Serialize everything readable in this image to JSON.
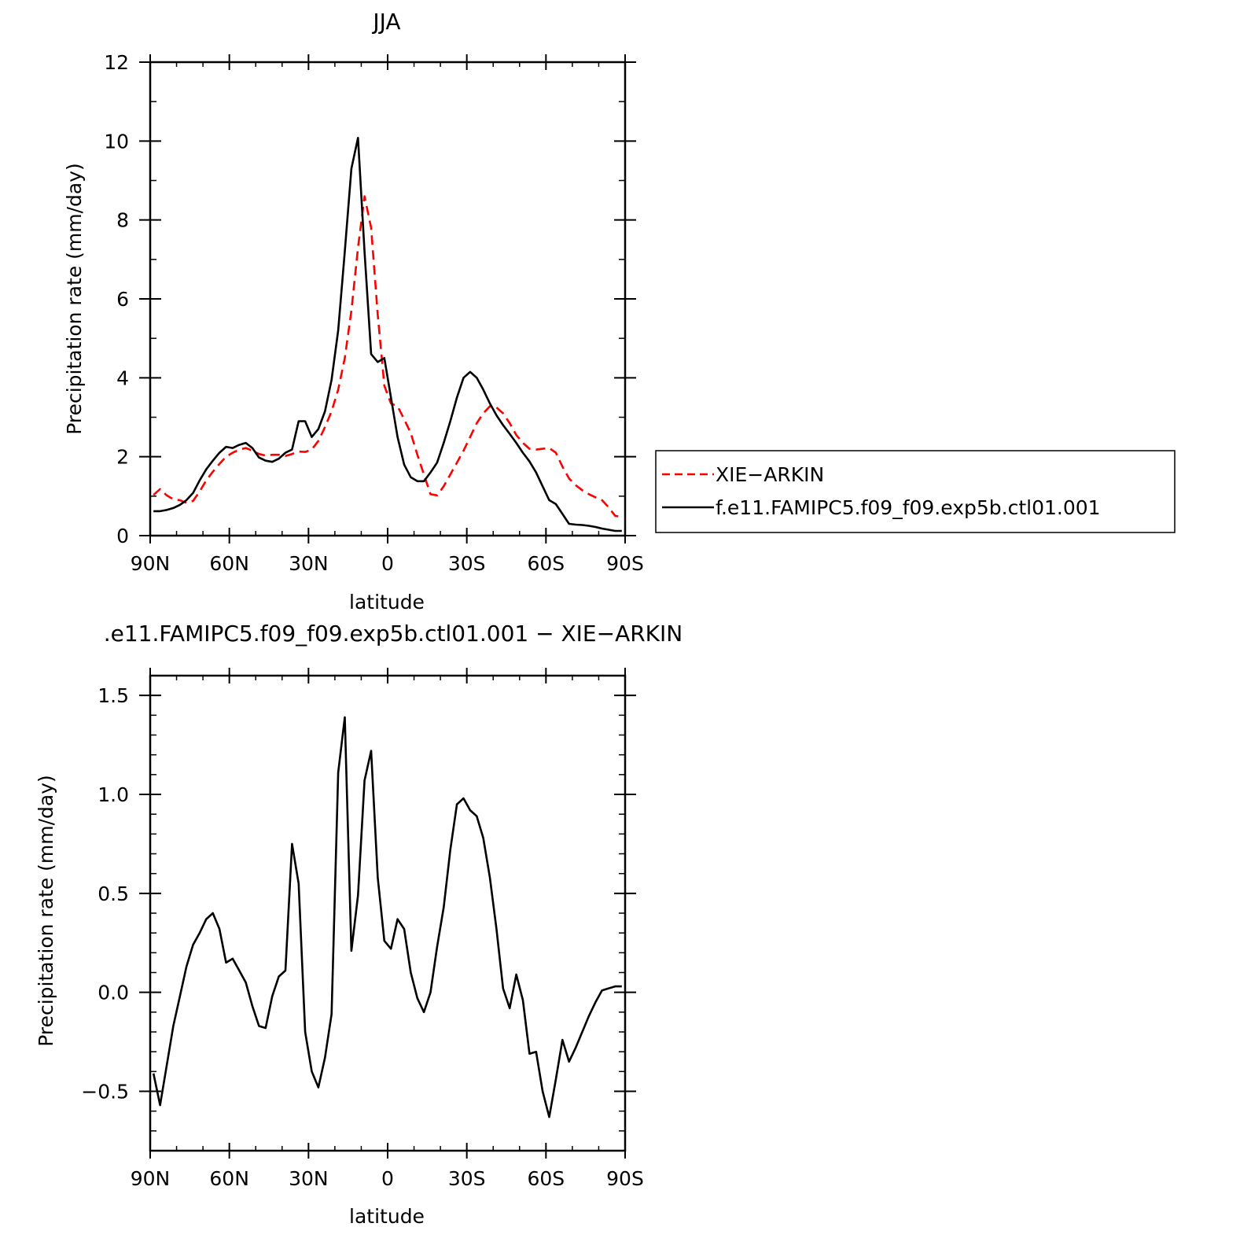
{
  "chart_data": [
    {
      "type": "line",
      "title": "JJA",
      "xlabel": "latitude",
      "ylabel": "Precipitation rate (mm/day)",
      "xlim": [
        90,
        -90
      ],
      "ylim": [
        0,
        12
      ],
      "x_ticks": [
        90,
        60,
        30,
        0,
        -30,
        -60,
        -90
      ],
      "x_tick_labels": [
        "90N",
        "60N",
        "30N",
        "0",
        "30S",
        "60S",
        "90S"
      ],
      "y_ticks": [
        0,
        2,
        4,
        6,
        8,
        10,
        12
      ],
      "y_tick_labels": [
        "0",
        "2",
        "4",
        "6",
        "8",
        "10",
        "12"
      ],
      "grid": false,
      "legend": "right",
      "series": [
        {
          "name": "XIE-ARKIN",
          "color": "#ff0000",
          "style": "dashed",
          "x": [
            88.75,
            86.25,
            83.75,
            81.25,
            78.75,
            76.25,
            73.75,
            71.25,
            68.75,
            66.25,
            63.75,
            61.25,
            58.75,
            56.25,
            53.75,
            51.25,
            48.75,
            46.25,
            43.75,
            41.25,
            38.75,
            36.25,
            33.75,
            31.25,
            28.75,
            26.25,
            23.75,
            21.25,
            18.75,
            16.25,
            13.75,
            11.25,
            8.75,
            6.25,
            3.75,
            1.25,
            -1.25,
            -3.75,
            -6.25,
            -8.75,
            -11.25,
            -13.75,
            -16.25,
            -18.75,
            -21.25,
            -23.75,
            -26.25,
            -28.75,
            -31.25,
            -33.75,
            -36.25,
            -38.75,
            -41.25,
            -43.75,
            -46.25,
            -48.75,
            -51.25,
            -53.75,
            -56.25,
            -58.75,
            -61.25,
            -63.75,
            -66.25,
            -68.75,
            -71.25,
            -73.75,
            -76.25,
            -78.75,
            -81.25,
            -83.75,
            -86.25,
            -88.75
          ],
          "values": [
            1.03,
            1.18,
            1.02,
            0.92,
            0.9,
            0.83,
            0.88,
            1.12,
            1.4,
            1.62,
            1.82,
            2.0,
            2.1,
            2.18,
            2.22,
            2.15,
            2.07,
            2.03,
            2.05,
            2.05,
            2.02,
            2.07,
            2.13,
            2.12,
            2.18,
            2.4,
            2.75,
            3.15,
            3.7,
            4.5,
            5.7,
            7.3,
            8.6,
            7.8,
            5.6,
            3.8,
            3.35,
            3.28,
            2.95,
            2.6,
            2.05,
            1.55,
            1.05,
            1.02,
            1.25,
            1.55,
            1.85,
            2.15,
            2.5,
            2.85,
            3.1,
            3.28,
            3.25,
            3.1,
            2.85,
            2.55,
            2.35,
            2.2,
            2.18,
            2.2,
            2.22,
            2.1,
            1.75,
            1.45,
            1.28,
            1.15,
            1.05,
            0.97,
            0.9,
            0.72,
            0.5,
            0.48
          ]
        },
        {
          "name": "f.e11.FAMIPC5.f09_f09.exp5b.ctl01.001",
          "color": "#000000",
          "style": "solid",
          "x": [
            88.75,
            86.25,
            83.75,
            81.25,
            78.75,
            76.25,
            73.75,
            71.25,
            68.75,
            66.25,
            63.75,
            61.25,
            58.75,
            56.25,
            53.75,
            51.25,
            48.75,
            46.25,
            43.75,
            41.25,
            38.75,
            36.25,
            33.75,
            31.25,
            28.75,
            26.25,
            23.75,
            21.25,
            18.75,
            16.25,
            13.75,
            11.25,
            8.75,
            6.25,
            3.75,
            1.25,
            -1.25,
            -3.75,
            -6.25,
            -8.75,
            -11.25,
            -13.75,
            -16.25,
            -18.75,
            -21.25,
            -23.75,
            -26.25,
            -28.75,
            -31.25,
            -33.75,
            -36.25,
            -38.75,
            -41.25,
            -43.75,
            -46.25,
            -48.75,
            -51.25,
            -53.75,
            -56.25,
            -58.75,
            -61.25,
            -63.75,
            -66.25,
            -68.75,
            -71.25,
            -73.75,
            -76.25,
            -78.75,
            -81.25,
            -83.75,
            -86.25,
            -88.75
          ],
          "values": [
            0.62,
            0.62,
            0.65,
            0.7,
            0.78,
            0.9,
            1.08,
            1.4,
            1.68,
            1.9,
            2.1,
            2.25,
            2.22,
            2.3,
            2.35,
            2.22,
            1.98,
            1.9,
            1.87,
            1.95,
            2.1,
            2.18,
            2.9,
            2.9,
            2.5,
            2.7,
            3.15,
            3.95,
            5.2,
            7.2,
            9.3,
            10.08,
            7.2,
            4.6,
            4.4,
            4.5,
            3.5,
            2.5,
            1.8,
            1.48,
            1.38,
            1.38,
            1.6,
            1.85,
            2.35,
            2.9,
            3.5,
            4.0,
            4.15,
            4.0,
            3.7,
            3.35,
            3.05,
            2.8,
            2.58,
            2.35,
            2.1,
            1.88,
            1.6,
            1.25,
            0.9,
            0.8,
            0.55,
            0.3,
            0.28,
            0.27,
            0.25,
            0.22,
            0.18,
            0.15,
            0.12,
            0.12
          ]
        }
      ]
    },
    {
      "type": "line",
      "title": ".e11.FAMIPC5.f09_f09.exp5b.ctl01.001 − XIE−ARKIN",
      "xlabel": "latitude",
      "ylabel": "Precipitation rate (mm/day)",
      "xlim": [
        90,
        -90
      ],
      "ylim": [
        -0.8,
        1.6
      ],
      "x_ticks": [
        90,
        60,
        30,
        0,
        -30,
        -60,
        -90
      ],
      "x_tick_labels": [
        "90N",
        "60N",
        "30N",
        "0",
        "30S",
        "60S",
        "90S"
      ],
      "y_ticks": [
        -0.5,
        0.0,
        0.5,
        1.0,
        1.5
      ],
      "y_tick_labels": [
        "−0.5",
        "0.0",
        "0.5",
        "1.0",
        "1.5"
      ],
      "grid": false,
      "series": [
        {
          "color": "#000000",
          "style": "solid",
          "x": [
            88.75,
            86.25,
            83.75,
            81.25,
            78.75,
            76.25,
            73.75,
            71.25,
            68.75,
            66.25,
            63.75,
            61.25,
            58.75,
            56.25,
            53.75,
            51.25,
            48.75,
            46.25,
            43.75,
            41.25,
            38.75,
            36.25,
            33.75,
            31.25,
            28.75,
            26.25,
            23.75,
            21.25,
            18.75,
            16.25,
            13.75,
            11.25,
            8.75,
            6.25,
            3.75,
            1.25,
            -1.25,
            -3.75,
            -6.25,
            -8.75,
            -11.25,
            -13.75,
            -16.25,
            -18.75,
            -21.25,
            -23.75,
            -26.25,
            -28.75,
            -31.25,
            -33.75,
            -36.25,
            -38.75,
            -41.25,
            -43.75,
            -46.25,
            -48.75,
            -51.25,
            -53.75,
            -56.25,
            -58.75,
            -61.25,
            -63.75,
            -66.25,
            -68.75,
            -71.25,
            -73.75,
            -76.25,
            -78.75,
            -81.25,
            -83.75,
            -86.25,
            -88.75
          ],
          "values": [
            -0.41,
            -0.57,
            -0.37,
            -0.17,
            -0.02,
            0.13,
            0.24,
            0.3,
            0.37,
            0.4,
            0.32,
            0.15,
            0.17,
            0.11,
            0.05,
            -0.07,
            -0.17,
            -0.18,
            -0.02,
            0.08,
            0.11,
            0.75,
            0.55,
            -0.2,
            -0.4,
            -0.48,
            -0.33,
            -0.11,
            1.11,
            1.39,
            0.21,
            0.49,
            1.07,
            1.22,
            0.58,
            0.26,
            0.22,
            0.37,
            0.32,
            0.1,
            -0.03,
            -0.1,
            0.0,
            0.23,
            0.43,
            0.72,
            0.95,
            0.98,
            0.92,
            0.89,
            0.78,
            0.58,
            0.32,
            0.02,
            -0.08,
            0.09,
            -0.04,
            -0.31,
            -0.3,
            -0.5,
            -0.63,
            -0.44,
            -0.24,
            -0.35,
            -0.28,
            -0.2,
            -0.12,
            -0.05,
            0.01,
            0.02,
            0.03,
            0.03
          ]
        }
      ]
    }
  ],
  "legend": {
    "entries": [
      "XIE−ARKIN",
      "f.e11.FAMIPC5.f09_f09.exp5b.ctl01.001"
    ]
  }
}
